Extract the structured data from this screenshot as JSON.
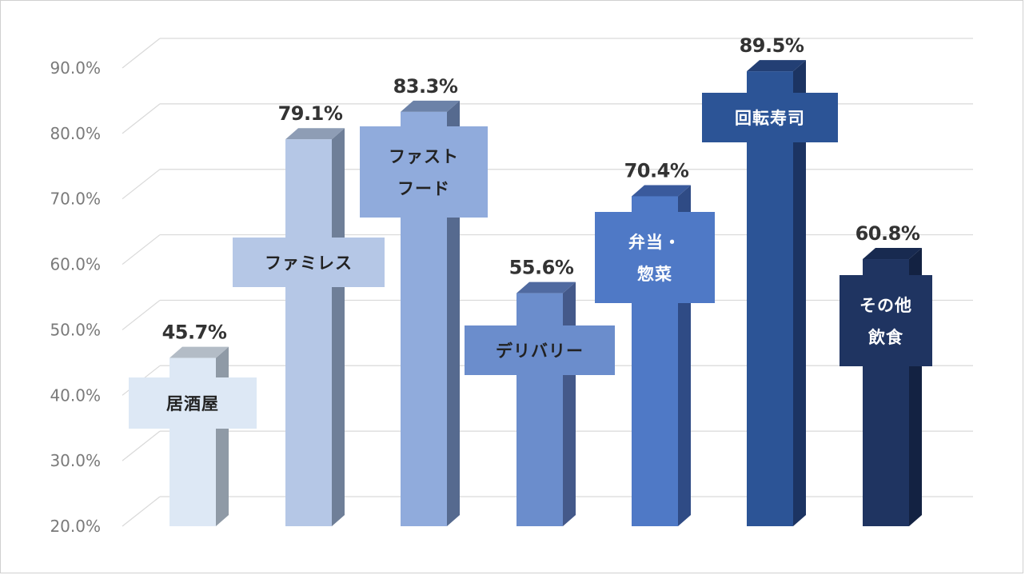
{
  "chart_data": {
    "type": "bar",
    "title": "",
    "xlabel": "",
    "ylabel": "",
    "ylim": [
      20,
      90
    ],
    "y_ticks": [
      "20.0%",
      "30.0%",
      "40.0%",
      "50.0%",
      "60.0%",
      "70.0%",
      "80.0%",
      "90.0%"
    ],
    "grid": true,
    "style": "3d-column",
    "categories": [
      {
        "label_lines": [
          "居酒屋"
        ],
        "value": 45.7,
        "value_label": "45.7%",
        "front": "#dde8f5",
        "side": "#8f9aa6",
        "top": "#b3bcc6",
        "label_bg": "#dde8f5",
        "label_color": "#222222"
      },
      {
        "label_lines": [
          "ファミレス"
        ],
        "value": 79.1,
        "value_label": "79.1%",
        "front": "#b5c7e6",
        "side": "#6f7f98",
        "top": "#8e9db5",
        "label_bg": "#b5c7e6",
        "label_color": "#222222"
      },
      {
        "label_lines": [
          "ファスト",
          "フード"
        ],
        "value": 83.3,
        "value_label": "83.3%",
        "front": "#90abdc",
        "side": "#566a8f",
        "top": "#6c82a8",
        "label_bg": "#90abdc",
        "label_color": "#222222"
      },
      {
        "label_lines": [
          "デリバリー"
        ],
        "value": 55.6,
        "value_label": "55.6%",
        "front": "#6b8dcc",
        "side": "#44598a",
        "top": "#506aa0",
        "label_bg": "#6b8dcc",
        "label_color": "#222222"
      },
      {
        "label_lines": [
          "弁当・",
          "惣菜"
        ],
        "value": 70.4,
        "value_label": "70.4%",
        "front": "#4f79c6",
        "side": "#2f4b85",
        "top": "#3a5a9c",
        "label_bg": "#4f79c6",
        "label_color": "#ffffff"
      },
      {
        "label_lines": [
          "回転寿司"
        ],
        "value": 89.5,
        "value_label": "89.5%",
        "front": "#2c5496",
        "side": "#1c3462",
        "top": "#233f74",
        "label_bg": "#2c5496",
        "label_color": "#ffffff"
      },
      {
        "label_lines": [
          "その他",
          "飲食"
        ],
        "value": 60.8,
        "value_label": "60.8%",
        "front": "#1f3461",
        "side": "#132242",
        "top": "#182a50",
        "label_bg": "#1f3461",
        "label_color": "#ffffff"
      }
    ]
  }
}
